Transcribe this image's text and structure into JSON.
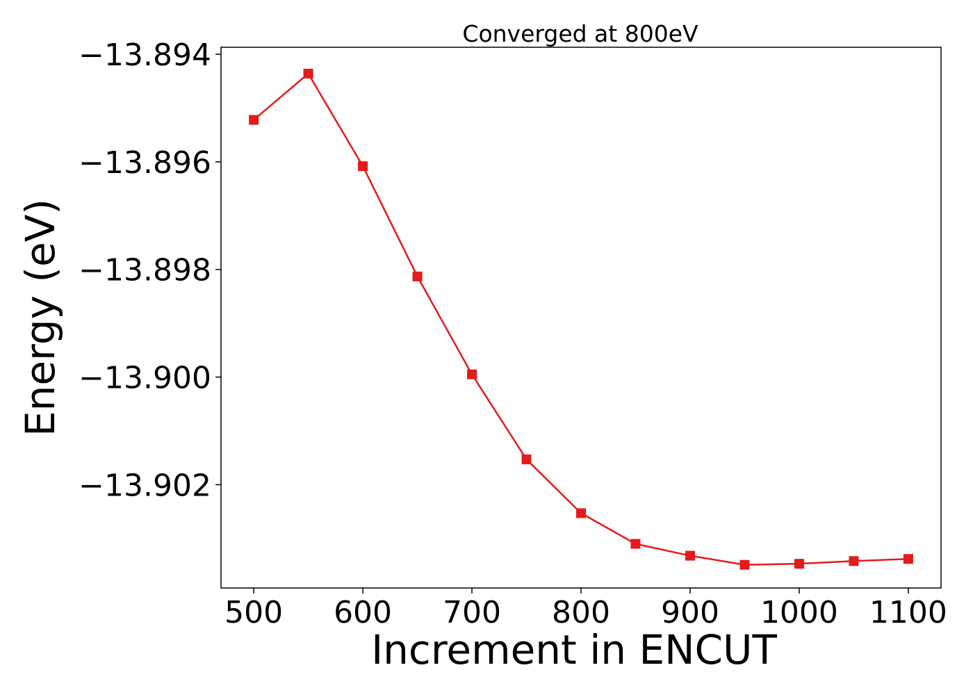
{
  "chart_data": {
    "type": "line",
    "title": "Converged at 800eV",
    "xlabel": "Increment in ENCUT",
    "ylabel": "Energy (eV)",
    "x": [
      500,
      550,
      600,
      650,
      700,
      750,
      800,
      850,
      900,
      950,
      1000,
      1050,
      1100
    ],
    "series": [
      {
        "values": [
          -13.89522,
          -13.89436,
          -13.89608,
          -13.89813,
          -13.89995,
          -13.90153,
          -13.90253,
          -13.9031,
          -13.90332,
          -13.90349,
          -13.90347,
          -13.90342,
          -13.90338
        ],
        "color": "#e41a1c",
        "marker": "square"
      }
    ],
    "xticks": [
      500,
      600,
      700,
      800,
      900,
      1000,
      1100
    ],
    "xtick_labels": [
      "500",
      "600",
      "700",
      "800",
      "900",
      "1000",
      "1100"
    ],
    "yticks": [
      -13.894,
      -13.896,
      -13.898,
      -13.9,
      -13.902
    ],
    "ytick_labels": [
      "−13.894",
      "−13.896",
      "−13.898",
      "−13.900",
      "−13.902"
    ],
    "xlim": [
      470,
      1130
    ],
    "ylim": [
      -13.90392,
      -13.89387
    ],
    "grid": false,
    "legend": "none"
  }
}
